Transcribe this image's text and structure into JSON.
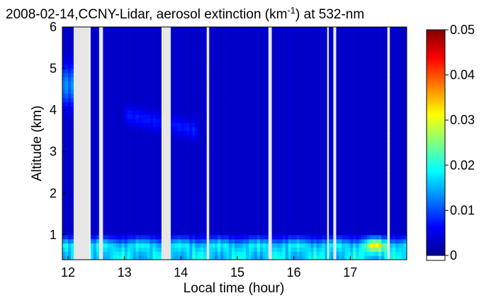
{
  "chart_data": {
    "type": "heatmap",
    "title_prefix": "2008-02-14,CCNY-Lidar, aerosol extinction (km",
    "title_exp": "-1",
    "title_suffix": ") at 532-nm",
    "xlabel": "Local time (hour)",
    "ylabel": "Altitude (km)",
    "xlim": [
      11.9,
      18.0
    ],
    "ylim": [
      0.4,
      6.0
    ],
    "xticks": [
      "12",
      "13",
      "14",
      "15",
      "16",
      "17"
    ],
    "yticks": [
      "1",
      "2",
      "3",
      "4",
      "5",
      "6"
    ],
    "colorbar": {
      "min": 0,
      "max": 0.05,
      "ticks": [
        "0",
        "0.01",
        "0.02",
        "0.03",
        "0.04",
        "0.05"
      ],
      "colormap": "jet"
    },
    "no_data_intervals": [
      [
        12.1,
        12.38
      ],
      [
        12.55,
        12.62
      ],
      [
        13.67,
        13.82
      ],
      [
        14.47,
        14.5
      ],
      [
        15.55,
        15.61
      ],
      [
        16.59,
        16.62
      ],
      [
        16.7,
        16.74
      ],
      [
        17.67,
        17.7
      ]
    ],
    "aerosol_layer": {
      "boundary_layer_top_km": 1.0,
      "background_extinction": 0.004,
      "boundary_layer_extinction": 0.022,
      "peak_extinction": 0.038,
      "peak_time_hour": 17.45
    },
    "grid": false,
    "colors": {
      "no_data": "#e6e6e6",
      "background": "#0033cc"
    }
  }
}
